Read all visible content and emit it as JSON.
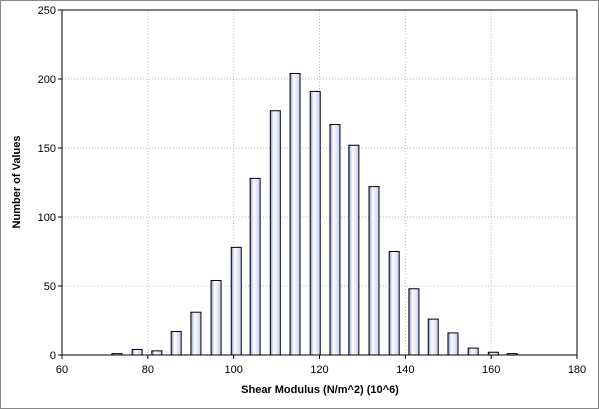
{
  "chart_data": {
    "type": "bar",
    "x_label": "Shear Modulus (N/m^2) (10^6)",
    "y_label": "Number of Values",
    "x": [
      72.8,
      77.5,
      82.1,
      86.6,
      91.2,
      95.9,
      100.6,
      105,
      109.7,
      114.3,
      119,
      123.6,
      128,
      132.7,
      137.4,
      142,
      146.5,
      151.1,
      155.8,
      160.5,
      164.9
    ],
    "values": [
      1,
      4,
      3,
      17,
      31,
      54,
      78,
      128,
      177,
      204,
      191,
      167,
      152,
      122,
      75,
      48,
      26,
      16,
      5,
      2,
      1
    ],
    "color": "#c8ccf6",
    "xlim": [
      60,
      180
    ],
    "xticks": [
      60,
      80,
      100,
      120,
      140,
      160,
      180
    ],
    "ylim": [
      0,
      250
    ],
    "yticks": [
      0,
      50,
      100,
      150,
      200,
      250
    ],
    "grid": true
  }
}
